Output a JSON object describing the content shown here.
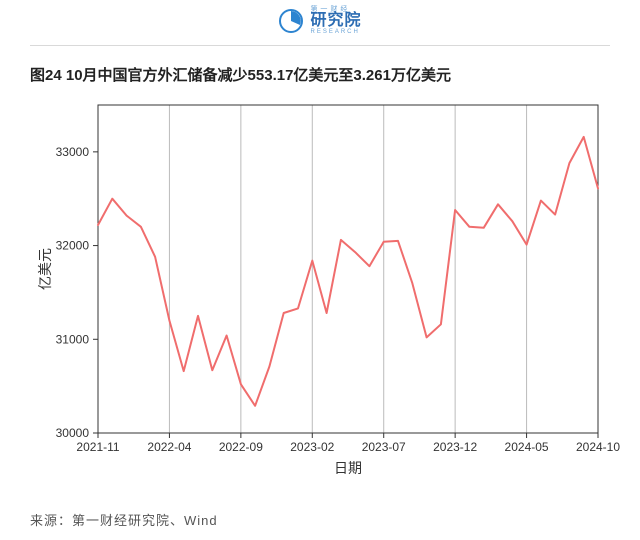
{
  "logo": {
    "top": "第 一 财 经",
    "main": "研究院",
    "sub": "RESEARCH",
    "icon_fill": "#2d84d0",
    "icon_stroke": "#2d84d0"
  },
  "chart": {
    "type": "line",
    "title": "图24 10月中国官方外汇储备减少553.17亿美元至3.261万亿美元",
    "x_label": "日期",
    "y_label": "亿美元",
    "line_color": "#f06d6d",
    "line_width": 2,
    "background_color": "#ffffff",
    "border_color": "#333333",
    "grid_color": "#bbbbbb",
    "tick_color": "#333333",
    "tick_fontsize": 12,
    "label_fontsize": 14,
    "ylim": [
      30000,
      33500
    ],
    "yticks": [
      30000,
      31000,
      32000,
      33000
    ],
    "xtick_labels": [
      "2021-11",
      "2022-04",
      "2022-09",
      "2023-02",
      "2023-07",
      "2023-12",
      "2024-05",
      "2024-10"
    ],
    "xtick_positions": [
      0,
      5,
      10,
      15,
      20,
      25,
      30,
      35
    ],
    "n_points": 36,
    "values": [
      32220,
      32500,
      32320,
      32200,
      31880,
      31200,
      30660,
      31250,
      30670,
      31040,
      30520,
      30290,
      30710,
      31280,
      31330,
      31840,
      31280,
      32060,
      31930,
      31780,
      32040,
      32050,
      31600,
      31020,
      31160,
      32380,
      32200,
      32190,
      32440,
      32260,
      32010,
      32480,
      32330,
      32880,
      33160,
      32610
    ]
  },
  "source": "来源：第一财经研究院、Wind"
}
